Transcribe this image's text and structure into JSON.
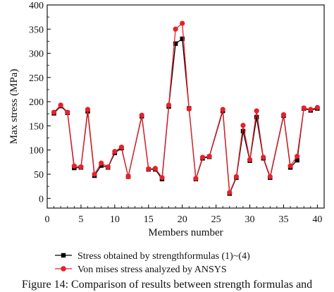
{
  "chart_data": {
    "type": "line",
    "xlabel": "Members number",
    "ylabel": "Max stress (MPa)",
    "xlim": [
      0,
      41
    ],
    "ylim": [
      -20,
      400
    ],
    "xticks": [
      0,
      5,
      10,
      15,
      20,
      25,
      30,
      35,
      40
    ],
    "yticks": [
      0,
      50,
      100,
      150,
      200,
      250,
      300,
      350,
      400
    ],
    "grid": false,
    "legend_position": "bottom",
    "x": [
      1,
      2,
      3,
      4,
      5,
      6,
      7,
      8,
      9,
      10,
      11,
      12,
      14,
      15,
      16,
      17,
      18,
      19,
      20,
      21,
      22,
      23,
      24,
      26,
      27,
      28,
      29,
      30,
      31,
      32,
      33,
      35,
      36,
      37,
      38,
      39,
      40
    ],
    "series": [
      {
        "name": "Stress obtained by strengthformulas (1)~(4)",
        "color": "#000000",
        "marker": "square",
        "values": [
          176,
          191,
          177,
          63,
          64,
          180,
          47,
          68,
          64,
          94,
          104,
          45,
          170,
          60,
          60,
          40,
          190,
          320,
          330,
          186,
          40,
          83,
          86,
          181,
          10,
          43,
          139,
          78,
          168,
          83,
          43,
          171,
          64,
          79,
          186,
          182,
          186
        ]
      },
      {
        "name": "Von mises stress analyzed by ANSYS",
        "color": "#e8202a",
        "marker": "circle",
        "values": [
          178,
          193,
          178,
          67,
          65,
          184,
          50,
          73,
          65,
          97,
          106,
          45,
          172,
          61,
          62,
          43,
          193,
          350,
          362,
          185,
          41,
          85,
          87,
          184,
          12,
          45,
          151,
          80,
          181,
          85,
          45,
          173,
          67,
          87,
          187,
          184,
          188
        ]
      }
    ]
  },
  "caption": "Figure 14: Comparison of results between strength formulas and"
}
